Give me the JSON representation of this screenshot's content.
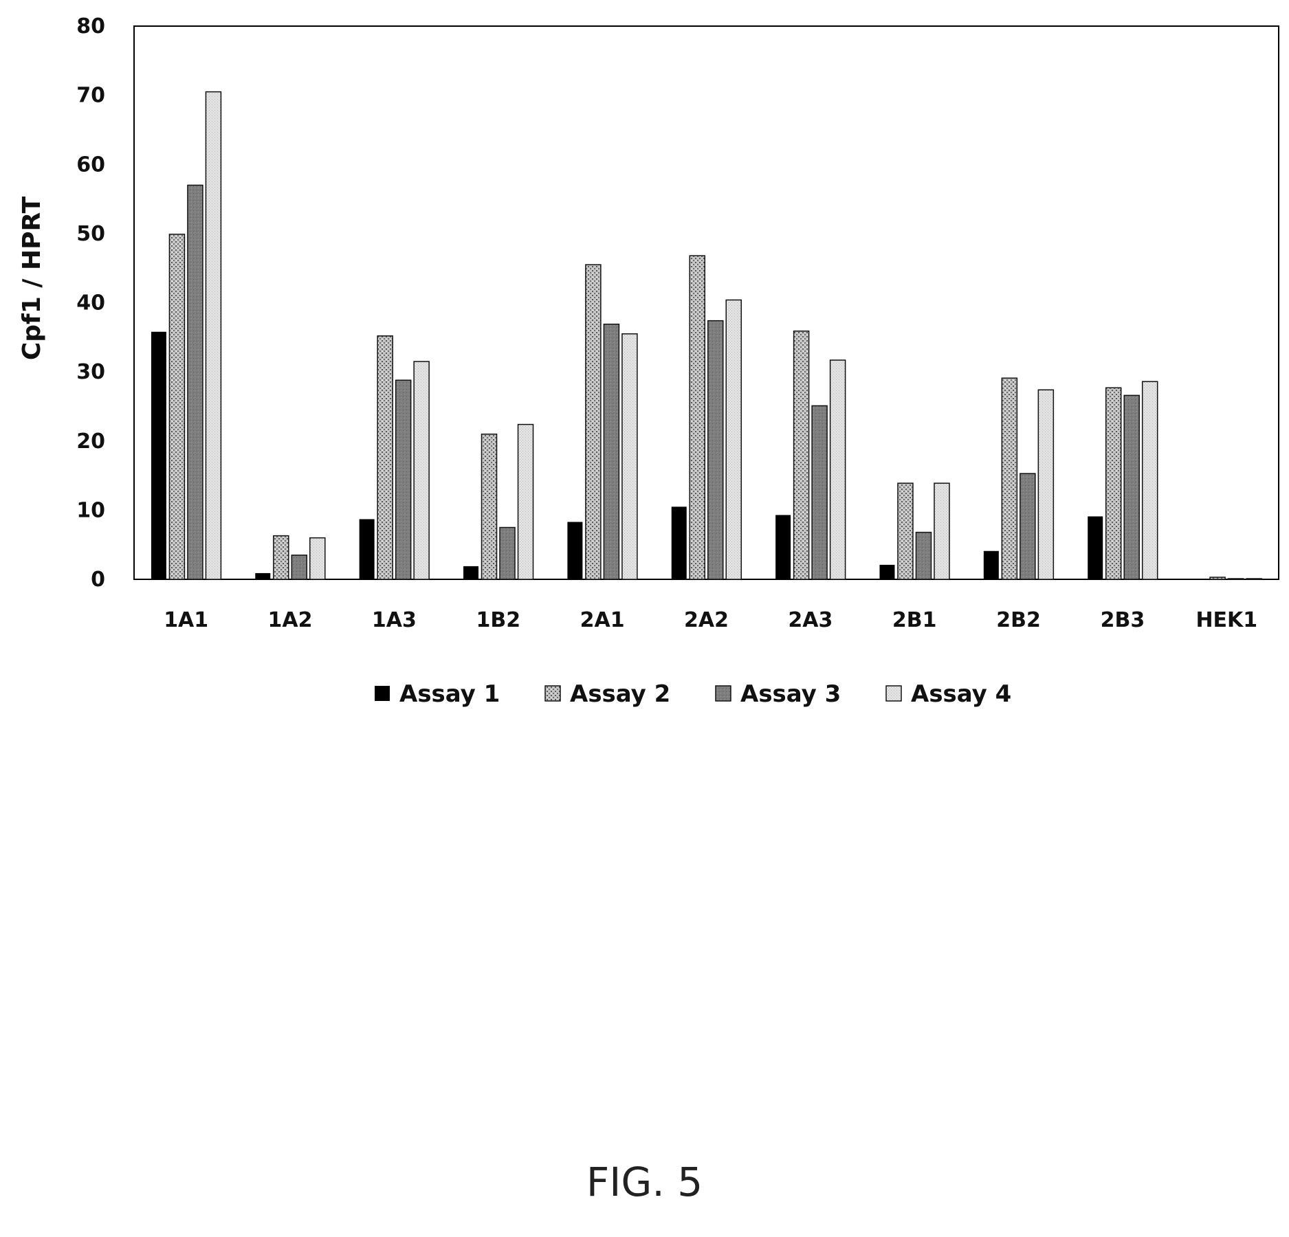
{
  "chart_data": {
    "type": "bar",
    "ylabel": "Cpf1 / HPRT",
    "xlabel": "",
    "ylim": [
      0,
      80
    ],
    "yticks": [
      0,
      10,
      20,
      30,
      40,
      50,
      60,
      70,
      80
    ],
    "grid": false,
    "legend_position": "bottom",
    "categories": [
      "1A1",
      "1A2",
      "1A3",
      "1B2",
      "2A1",
      "2A2",
      "2A3",
      "2B1",
      "2B2",
      "2B3",
      "HEK1"
    ],
    "series": [
      {
        "name": "Assay 1",
        "pattern": "solid-black",
        "values": [
          35.8,
          0.9,
          8.7,
          1.9,
          8.3,
          10.5,
          9.3,
          2.1,
          4.1,
          9.1,
          0.1
        ]
      },
      {
        "name": "Assay 2",
        "pattern": "speckled-light",
        "values": [
          49.9,
          6.3,
          35.2,
          21.0,
          45.5,
          46.8,
          35.9,
          13.9,
          29.1,
          27.7,
          0.3
        ]
      },
      {
        "name": "Assay 3",
        "pattern": "speckled-dark",
        "values": [
          57.0,
          3.5,
          28.8,
          7.5,
          36.9,
          37.4,
          25.1,
          6.8,
          15.3,
          26.6,
          0.1
        ]
      },
      {
        "name": "Assay 4",
        "pattern": "dotted-pale",
        "values": [
          70.5,
          6.0,
          31.5,
          22.4,
          35.5,
          40.4,
          31.7,
          13.9,
          27.4,
          28.6,
          0.1
        ]
      }
    ]
  },
  "caption": "FIG. 5"
}
